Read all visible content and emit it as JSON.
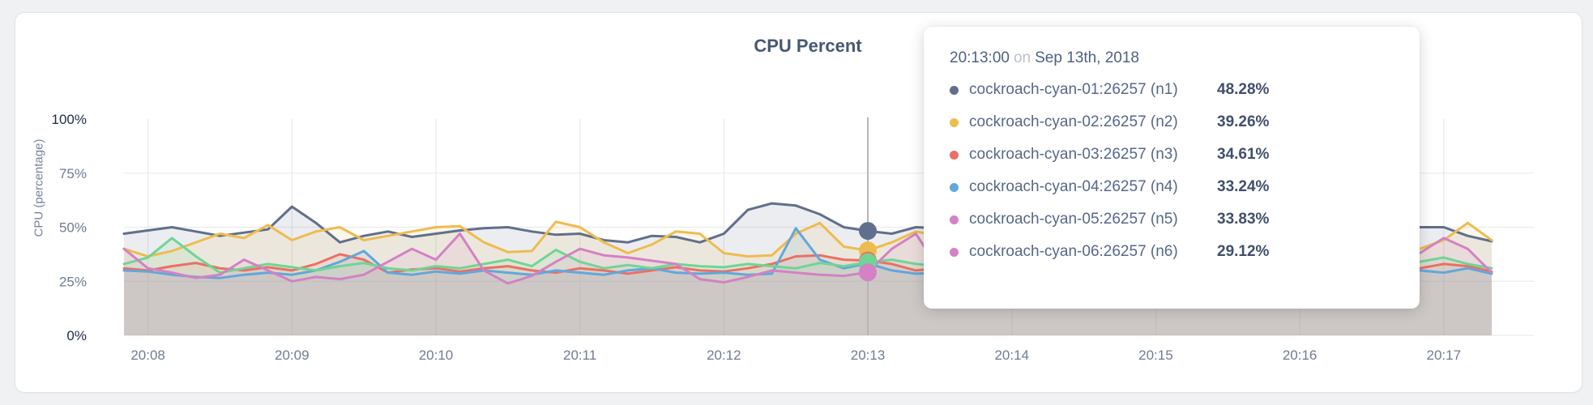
{
  "page": {
    "background": "#f0f1f2"
  },
  "card": {
    "background": "#ffffff",
    "border_color": "#e2e4e8"
  },
  "chart_data": {
    "type": "area",
    "title": "CPU Percent",
    "xlabel": "",
    "ylabel": "CPU (percentage)",
    "ylim": [
      0,
      100
    ],
    "grid": true,
    "legend_position": "none",
    "x_unit": "time",
    "x_start": "20:07:50",
    "x_interval_seconds": 10,
    "x_tick_labels": [
      "20:08",
      "20:09",
      "20:10",
      "20:11",
      "20:12",
      "20:13",
      "20:14",
      "20:15",
      "20:16",
      "20:17"
    ],
    "y_ticks": [
      {
        "label": "0%",
        "value": 0,
        "emphasis": true,
        "grid": true
      },
      {
        "label": "25%",
        "value": 25,
        "emphasis": false,
        "grid": true
      },
      {
        "label": "50%",
        "value": 50,
        "emphasis": false,
        "grid": true
      },
      {
        "label": "75%",
        "value": 75,
        "emphasis": false,
        "grid": true
      },
      {
        "label": "100%",
        "value": 100,
        "emphasis": true,
        "grid": false
      }
    ],
    "hover_index": 31,
    "series": [
      {
        "name": "cockroach-cyan-01:26257 (n1)",
        "color": "#606f8c",
        "values": [
          47,
          48.5,
          50,
          48,
          46,
          47.5,
          49,
          59.5,
          52,
          43,
          46,
          48,
          45.5,
          47,
          48.5,
          49.5,
          50,
          48,
          46.5,
          47,
          44,
          43,
          46,
          45.5,
          43,
          47,
          58,
          61,
          60,
          56,
          50,
          48.28,
          47,
          50,
          49.5,
          47,
          48,
          50,
          46.5,
          48,
          51,
          49,
          47,
          50,
          48,
          46,
          49,
          51,
          48,
          47,
          50,
          48.5,
          46,
          49,
          50,
          50,
          46,
          43.5
        ]
      },
      {
        "name": "cockroach-cyan-02:26257 (n2)",
        "color": "#eebc4e",
        "values": [
          40,
          36.5,
          39,
          43,
          47,
          45,
          51,
          44,
          48,
          50,
          44,
          46,
          48,
          50,
          50.5,
          43,
          38.5,
          39,
          52.5,
          50,
          43,
          38,
          42,
          48,
          47,
          38,
          36.5,
          37,
          47,
          52,
          41,
          39.26,
          43,
          48,
          46,
          42,
          45,
          47,
          43,
          40,
          44,
          47,
          45,
          41,
          44,
          46,
          42,
          40,
          45,
          47,
          43,
          41,
          44,
          40,
          40,
          44,
          52,
          44
        ]
      },
      {
        "name": "cockroach-cyan-03:26257 (n3)",
        "color": "#ea7065",
        "values": [
          31,
          30,
          32,
          33.5,
          31,
          30,
          31.5,
          30,
          33,
          37.5,
          35,
          29,
          30.5,
          31,
          29.5,
          31,
          32,
          30,
          29,
          31,
          30,
          28.5,
          30,
          31.5,
          30,
          29.5,
          31,
          33,
          36.5,
          37,
          35,
          34.61,
          33,
          30,
          31,
          32,
          30,
          31.5,
          33,
          31,
          30,
          32,
          31,
          29.5,
          31,
          32.5,
          31,
          30,
          32,
          31,
          30,
          31.5,
          33,
          32,
          31,
          33,
          32,
          29.5
        ]
      },
      {
        "name": "cockroach-cyan-04:26257 (n4)",
        "color": "#61a7dc",
        "values": [
          30,
          29.5,
          28,
          27,
          26.5,
          28,
          29,
          28,
          30,
          34,
          39,
          29,
          28,
          29.5,
          28.5,
          30,
          29,
          28,
          30,
          29,
          28,
          30,
          31,
          29,
          28.5,
          29,
          28,
          28.5,
          49.5,
          35,
          31,
          33.24,
          30,
          28.5,
          29,
          30,
          28,
          29,
          30.5,
          29,
          28,
          30,
          29,
          28,
          29.5,
          31,
          29,
          28,
          30,
          29,
          28.5,
          30,
          29,
          31,
          30,
          29,
          31,
          28.5
        ]
      },
      {
        "name": "cockroach-cyan-05:26257 (n5)",
        "color": "#6fd595",
        "values": [
          33,
          36,
          45,
          36.5,
          29,
          31,
          33,
          31.5,
          30,
          32,
          33.5,
          31,
          30,
          32,
          31,
          33,
          35,
          32,
          39.5,
          34,
          31,
          32.5,
          31,
          33,
          32,
          31.5,
          33,
          32,
          31,
          33.5,
          32,
          33.83,
          35,
          33,
          32,
          34,
          33,
          31.5,
          33,
          34,
          32,
          33,
          35,
          33,
          32,
          34,
          33,
          32,
          34.5,
          33,
          32,
          34,
          33,
          35.5,
          34,
          36,
          33,
          31
        ]
      },
      {
        "name": "cockroach-cyan-06:26257 (n6)",
        "color": "#d481c5",
        "values": [
          40,
          31,
          29,
          26.5,
          28,
          35,
          30,
          25,
          27,
          26,
          28,
          34,
          40,
          35,
          47,
          30,
          24,
          27.5,
          34,
          40,
          37,
          36,
          34.5,
          33,
          26,
          24.5,
          27,
          30,
          29,
          28,
          27.5,
          29.12,
          40,
          47,
          30,
          27,
          29,
          31,
          28,
          30,
          32,
          29,
          28,
          31,
          30,
          28.5,
          31,
          33,
          29,
          28,
          31,
          30,
          28,
          33,
          38,
          45,
          40,
          29
        ]
      }
    ]
  },
  "tooltip": {
    "time": "20:13:00",
    "connector": "on",
    "date": "Sep 13th, 2018",
    "rows": [
      {
        "label": "cockroach-cyan-01:26257 (n1)",
        "value": "48.28%",
        "color": "#606f8c"
      },
      {
        "label": "cockroach-cyan-02:26257 (n2)",
        "value": "39.26%",
        "color": "#eebc4e"
      },
      {
        "label": "cockroach-cyan-03:26257 (n3)",
        "value": "34.61%",
        "color": "#ea7065"
      },
      {
        "label": "cockroach-cyan-04:26257 (n4)",
        "value": "33.24%",
        "color": "#61a7dc"
      },
      {
        "label": "cockroach-cyan-05:26257 (n5)",
        "value": "33.83%",
        "color": "#d481c5"
      },
      {
        "label": "cockroach-cyan-06:26257 (n6)",
        "value": "29.12%",
        "color": "#d481c5"
      }
    ]
  },
  "styles": {
    "axis_text": "#6e7c95",
    "axis_text_emphasis": "#1f2c45",
    "grid_color": "#ececec",
    "hover_line_color": "#b6b6b6",
    "title_color": "#475872"
  }
}
